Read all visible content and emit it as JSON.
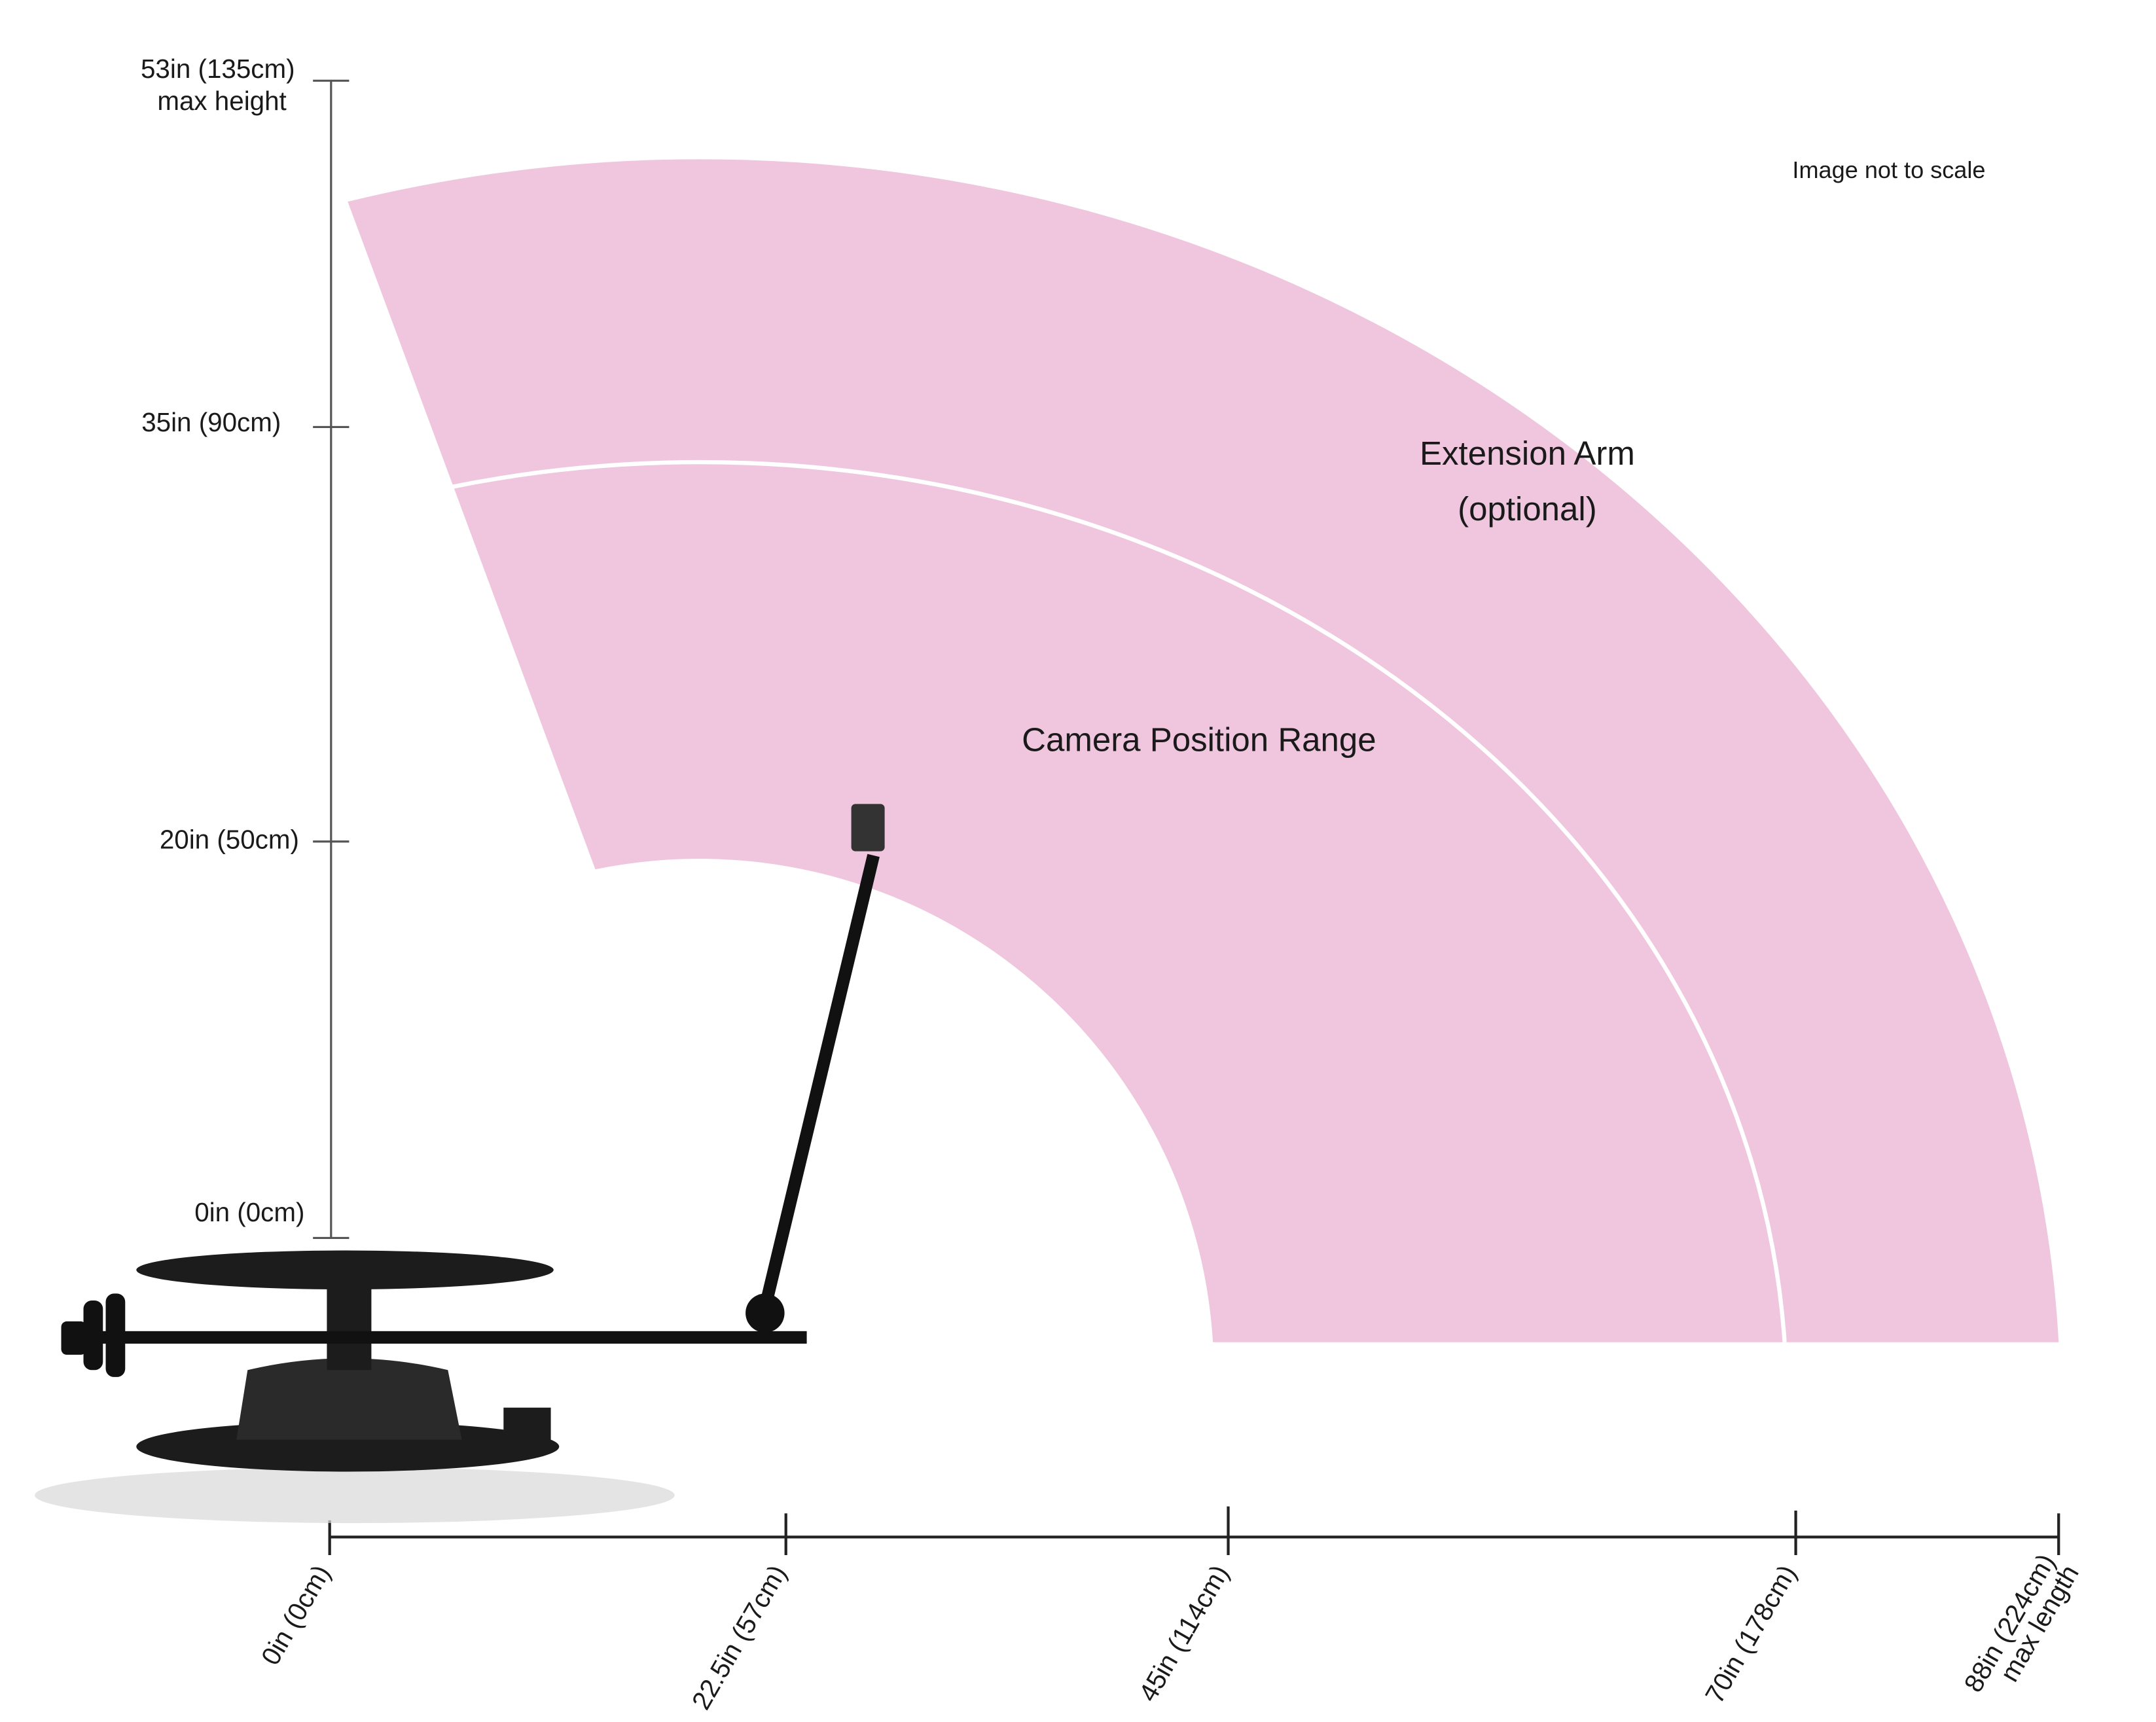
{
  "note": "Image not to scale",
  "vertical_axis": {
    "ticks": [
      {
        "label": "53in (135cm)",
        "sublabel": "max height"
      },
      {
        "label": "35in (90cm)"
      },
      {
        "label": "20in (50cm)"
      },
      {
        "label": "0in (0cm)"
      }
    ]
  },
  "horizontal_axis": {
    "ticks": [
      {
        "label": "0in (0cm)"
      },
      {
        "label": "22.5in (57cm)"
      },
      {
        "label": "45in (114cm)"
      },
      {
        "label": "70in (178cm)"
      },
      {
        "label": "88in (224cm)",
        "sublabel": "max length"
      }
    ]
  },
  "regions": [
    {
      "label": "Camera Position Range"
    },
    {
      "label": "Extension Arm",
      "sublabel": "(optional)"
    }
  ]
}
